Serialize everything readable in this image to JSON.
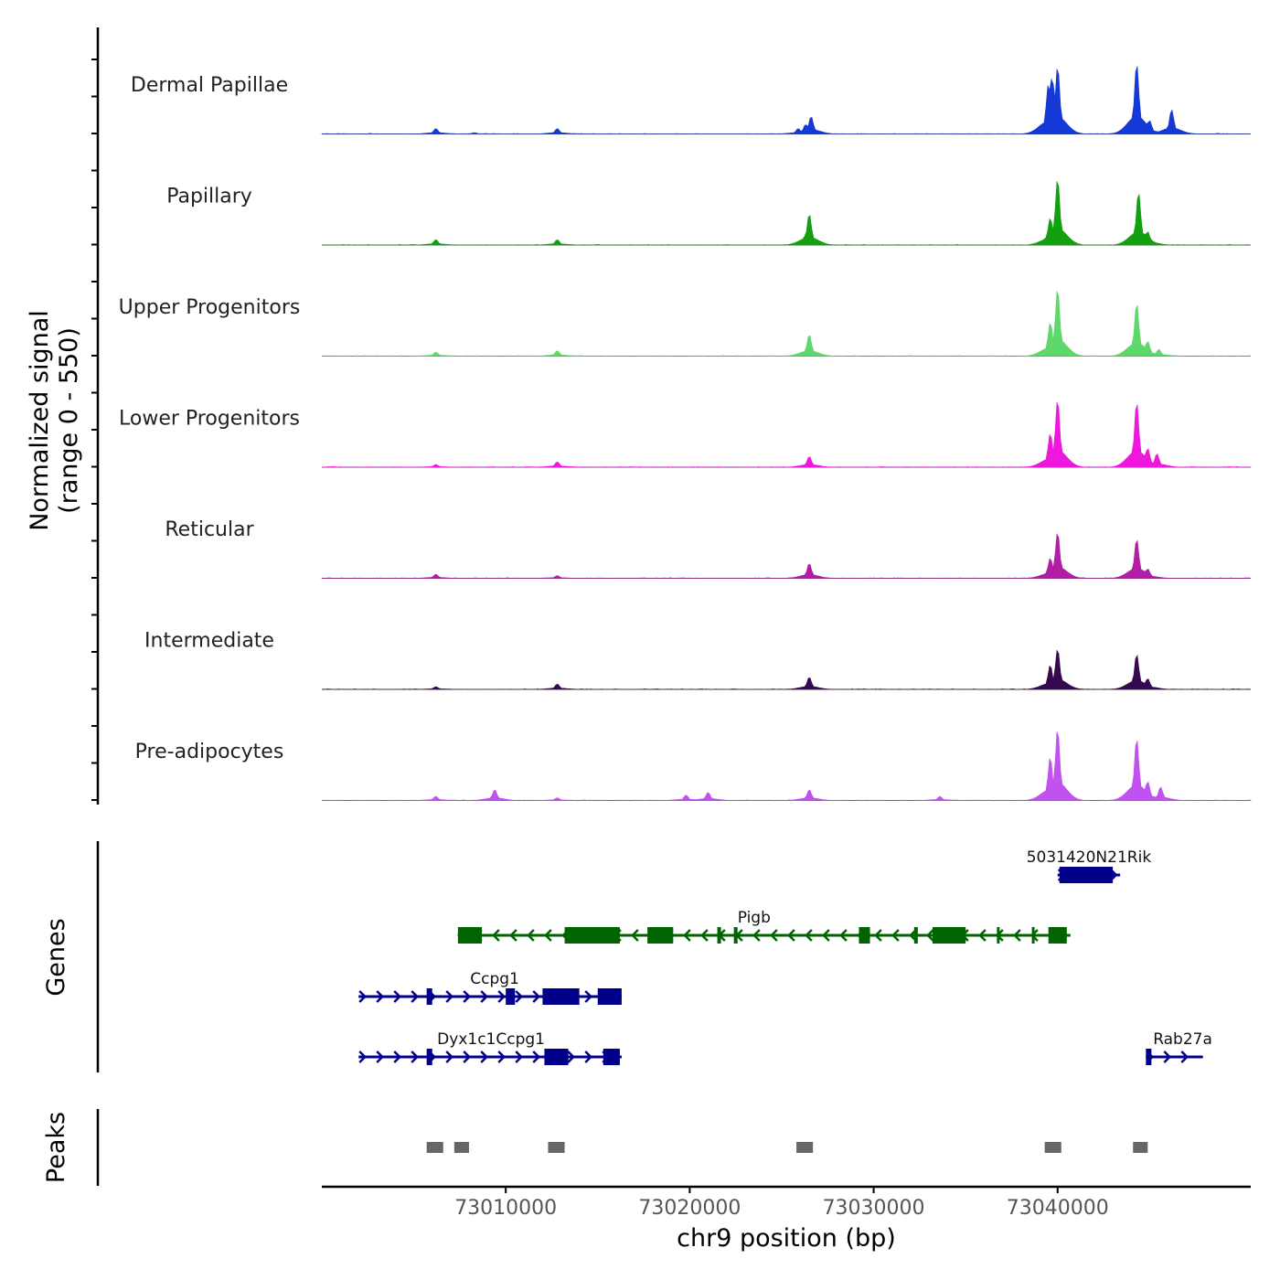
{
  "chart_data": {
    "type": "area",
    "title": "",
    "ylabel_line1": "Normalized signal",
    "ylabel_line2": "(range 0 - 550)",
    "xlabel": "chr9 position (bp)",
    "xlim": [
      73000000,
      73050500
    ],
    "ylim": [
      0,
      550
    ],
    "x_ticks": [
      73010000,
      73020000,
      73030000,
      73040000
    ],
    "x_tick_labels": [
      "73010000",
      "73020000",
      "73030000",
      "73040000"
    ],
    "tracks": [
      {
        "name": "Dermal Papillae",
        "color": "#1538d6",
        "peaks": [
          [
            73006200,
            40
          ],
          [
            73008300,
            10
          ],
          [
            73012800,
            40
          ],
          [
            73025900,
            40
          ],
          [
            73026300,
            70
          ],
          [
            73026600,
            130
          ],
          [
            73039500,
            370
          ],
          [
            73039700,
            420
          ],
          [
            73040000,
            500
          ],
          [
            73044300,
            520
          ],
          [
            73045000,
            100
          ],
          [
            73046200,
            180
          ]
        ]
      },
      {
        "name": "Papillary",
        "color": "#13a010",
        "peaks": [
          [
            73006200,
            40
          ],
          [
            73012800,
            40
          ],
          [
            73026300,
            70
          ],
          [
            73026500,
            230
          ],
          [
            73039600,
            200
          ],
          [
            73040000,
            490
          ],
          [
            73044400,
            390
          ],
          [
            73044900,
            100
          ]
        ]
      },
      {
        "name": "Upper Progenitors",
        "color": "#5ed86a",
        "peaks": [
          [
            73006200,
            30
          ],
          [
            73012800,
            40
          ],
          [
            73026500,
            160
          ],
          [
            73039600,
            250
          ],
          [
            73040000,
            500
          ],
          [
            73044300,
            390
          ],
          [
            73044900,
            110
          ],
          [
            73045500,
            50
          ]
        ]
      },
      {
        "name": "Lower Progenitors",
        "color": "#ee18dc",
        "peaks": [
          [
            73006200,
            20
          ],
          [
            73012800,
            40
          ],
          [
            73026500,
            80
          ],
          [
            73039600,
            250
          ],
          [
            73040000,
            500
          ],
          [
            73044300,
            480
          ],
          [
            73044900,
            140
          ],
          [
            73045400,
            100
          ]
        ]
      },
      {
        "name": "Reticular",
        "color": "#b11ea4",
        "peaks": [
          [
            73006200,
            30
          ],
          [
            73012800,
            20
          ],
          [
            73026500,
            110
          ],
          [
            73039600,
            150
          ],
          [
            73040000,
            340
          ],
          [
            73044300,
            290
          ],
          [
            73044900,
            70
          ]
        ]
      },
      {
        "name": "Intermediate",
        "color": "#34094f",
        "peaks": [
          [
            73006200,
            20
          ],
          [
            73012800,
            40
          ],
          [
            73026500,
            90
          ],
          [
            73039600,
            180
          ],
          [
            73040000,
            300
          ],
          [
            73044300,
            260
          ],
          [
            73044900,
            80
          ]
        ]
      },
      {
        "name": "Pre-adipocytes",
        "color": "#c252f0",
        "peaks": [
          [
            73006200,
            30
          ],
          [
            73009400,
            80
          ],
          [
            73012800,
            20
          ],
          [
            73019800,
            40
          ],
          [
            73021000,
            60
          ],
          [
            73026500,
            80
          ],
          [
            73033600,
            30
          ],
          [
            73039600,
            320
          ],
          [
            73040000,
            530
          ],
          [
            73044300,
            460
          ],
          [
            73044900,
            140
          ],
          [
            73045600,
            100
          ]
        ]
      }
    ],
    "genes_label": "Genes",
    "genes": [
      {
        "name": "5031420N21Rik",
        "strand": "+",
        "color": "#00008b",
        "row": 0,
        "start": 73040000,
        "end": 73043400,
        "label_pos": 73041700,
        "exons": [
          [
            73040100,
            73043000
          ]
        ]
      },
      {
        "name": "Pigb",
        "strand": "-",
        "color": "#006400",
        "row": 1,
        "start": 73007400,
        "end": 73040700,
        "label_pos": 73023500,
        "exons": [
          [
            73007400,
            73008700
          ],
          [
            73013200,
            73016200
          ],
          [
            73017700,
            73019100
          ],
          [
            73021500,
            73021700
          ],
          [
            73022400,
            73022600
          ],
          [
            73029200,
            73029800
          ],
          [
            73032200,
            73032400
          ],
          [
            73033200,
            73035000
          ],
          [
            73036700,
            73036800
          ],
          [
            73038600,
            73038700
          ],
          [
            73039500,
            73040500
          ]
        ]
      },
      {
        "name": "Ccpg1",
        "strand": "+",
        "color": "#00008b",
        "row": 2,
        "start": 73002000,
        "end": 73016300,
        "label_pos": 73009400,
        "exons": [
          [
            73005700,
            73006000
          ],
          [
            73010000,
            73010500
          ],
          [
            73012000,
            73014000
          ],
          [
            73015000,
            73016300
          ]
        ]
      },
      {
        "name": "Dyx1c1Ccpg1",
        "strand": "+",
        "color": "#00008b",
        "row": 3,
        "start": 73002000,
        "end": 73016300,
        "label_pos": 73009200,
        "exons": [
          [
            73005700,
            73006000
          ],
          [
            73012100,
            73013400
          ],
          [
            73015300,
            73016200
          ]
        ]
      },
      {
        "name": "Rab27a",
        "strand": "+",
        "color": "#00008b",
        "row": 3,
        "start": 73044800,
        "end": 73047900,
        "label_pos": 73046800,
        "exons": [
          [
            73044800,
            73045100
          ]
        ]
      }
    ],
    "peaks_label": "Peaks",
    "peak_regions": [
      [
        73005700,
        73006600
      ],
      [
        73007200,
        73008000
      ],
      [
        73012300,
        73013200
      ],
      [
        73025800,
        73026700
      ],
      [
        73039300,
        73040200
      ],
      [
        73044100,
        73044900
      ]
    ],
    "peak_color": "#666666"
  }
}
